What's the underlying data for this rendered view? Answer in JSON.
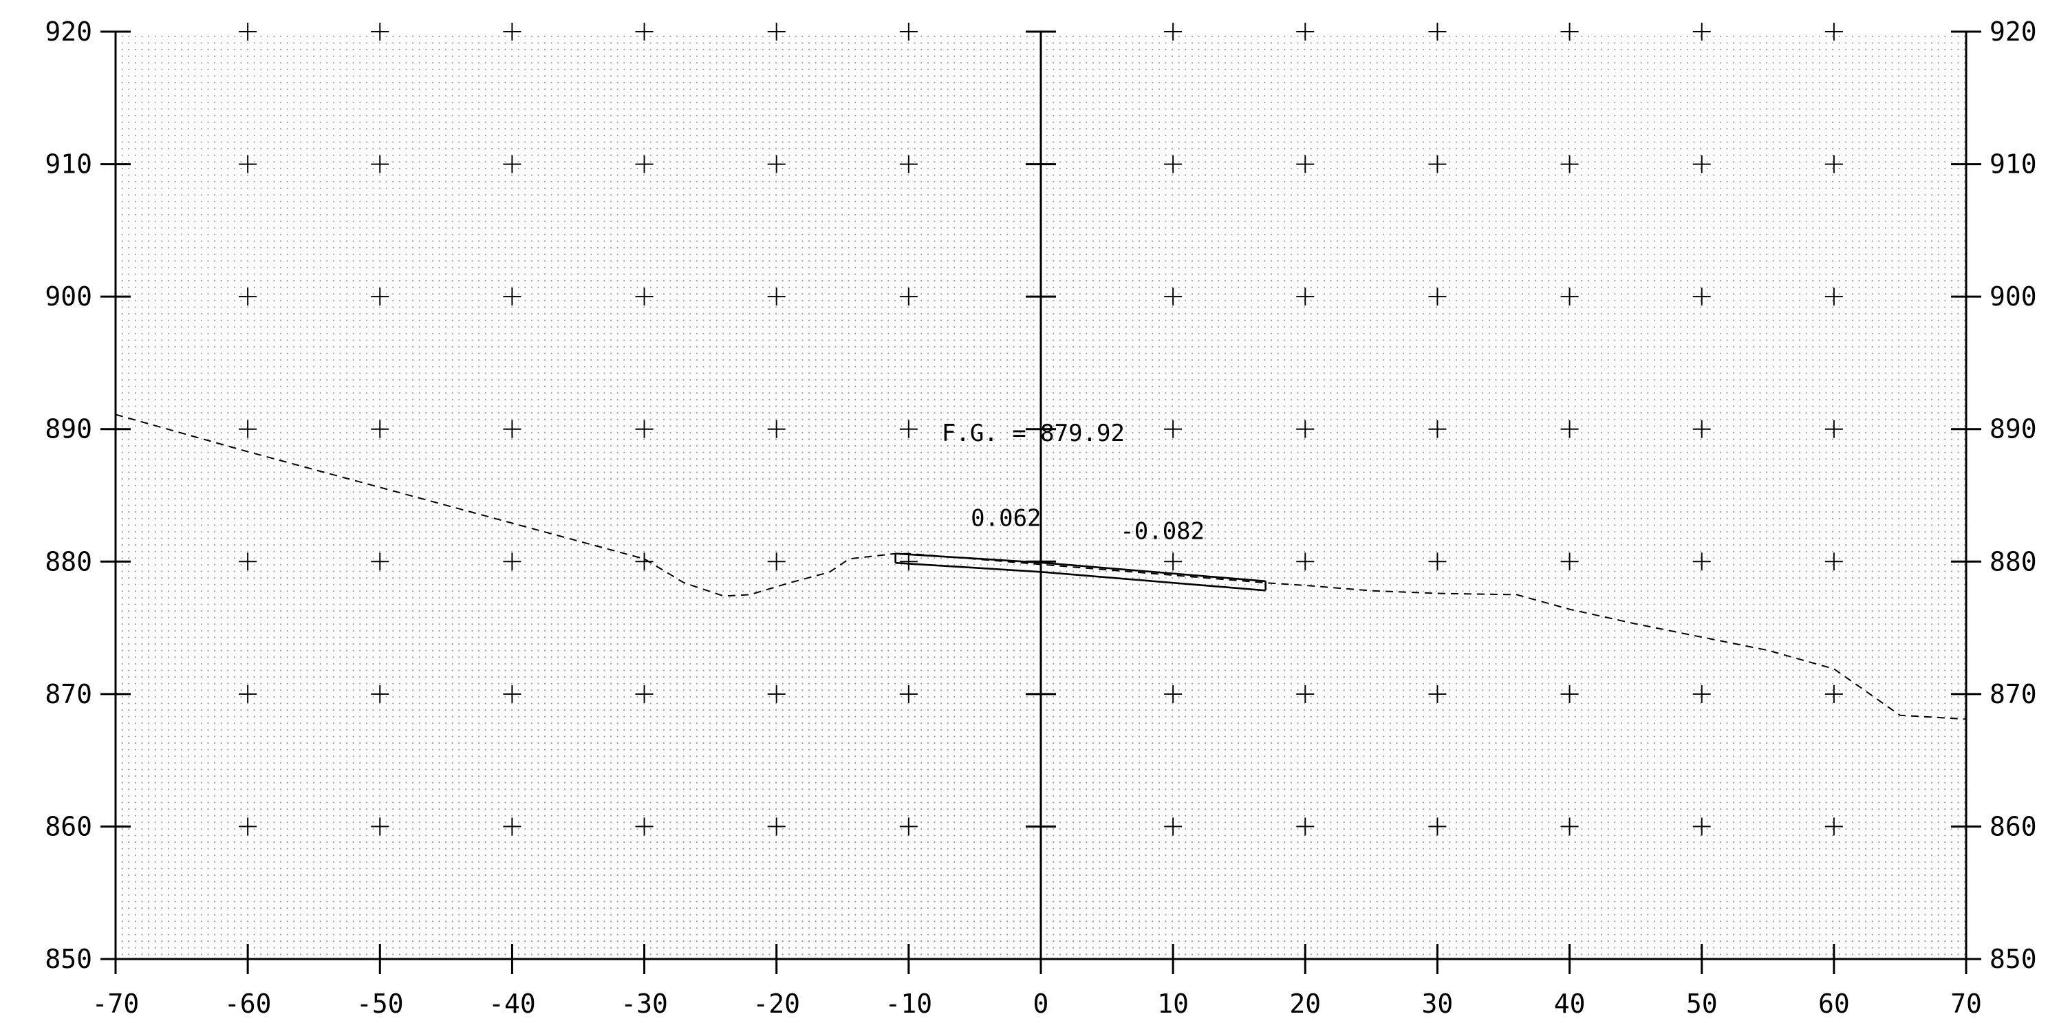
{
  "chart_data": {
    "type": "line",
    "title": "",
    "xlabel": "",
    "ylabel": "",
    "xlim": [
      -70,
      70
    ],
    "ylim": [
      850,
      920
    ],
    "x_ticks": [
      -70,
      -60,
      -50,
      -40,
      -30,
      -20,
      -10,
      0,
      10,
      20,
      30,
      40,
      50,
      60,
      70
    ],
    "x_tick_labels": [
      "-70",
      "-60",
      "-50",
      "-40",
      "-30",
      "-20",
      "-10",
      "0",
      "10",
      "20",
      "30",
      "40",
      "50",
      "60",
      "70"
    ],
    "y_ticks": [
      850,
      860,
      870,
      880,
      890,
      900,
      910,
      920
    ],
    "y_tick_labels": [
      "850",
      "860",
      "870",
      "880",
      "890",
      "900",
      "910",
      "920"
    ],
    "grid": "dotted",
    "series": [
      {
        "style": "dashed",
        "points": [
          [
            -70,
            891.1
          ],
          [
            -60,
            888.3
          ],
          [
            -50,
            885.6
          ],
          [
            -40,
            882.9
          ],
          [
            -30,
            880.2
          ],
          [
            -27,
            878.4
          ],
          [
            -24,
            877.4
          ],
          [
            -22,
            877.5
          ],
          [
            -19,
            878.4
          ],
          [
            -16,
            879.2
          ],
          [
            -14.5,
            880.2
          ],
          [
            -11,
            880.6
          ],
          [
            -10,
            880.6
          ],
          [
            17,
            878.4
          ],
          [
            20,
            878.2
          ],
          [
            25,
            877.8
          ],
          [
            30,
            877.6
          ],
          [
            36,
            877.5
          ],
          [
            40,
            876.4
          ],
          [
            45,
            875.3
          ],
          [
            50,
            874.3
          ],
          [
            55,
            873.3
          ],
          [
            60,
            871.9
          ],
          [
            62,
            870.5
          ],
          [
            65,
            868.4
          ],
          [
            70,
            868.1
          ]
        ]
      },
      {
        "style": "solid",
        "points": [
          [
            -11,
            880.6
          ],
          [
            0,
            879.92
          ],
          [
            17,
            878.52
          ]
        ]
      },
      {
        "style": "solid",
        "points": [
          [
            -11,
            879.9
          ],
          [
            0,
            879.22
          ],
          [
            17,
            877.82
          ]
        ]
      }
    ],
    "annotations": [
      {
        "text": "F.G. = 879.92",
        "x": -7.5,
        "y": 889.1
      },
      {
        "text": "0.062",
        "x": -5.3,
        "y": 882.7
      },
      {
        "text": "-0.082",
        "x": 6,
        "y": 881.7
      }
    ]
  }
}
